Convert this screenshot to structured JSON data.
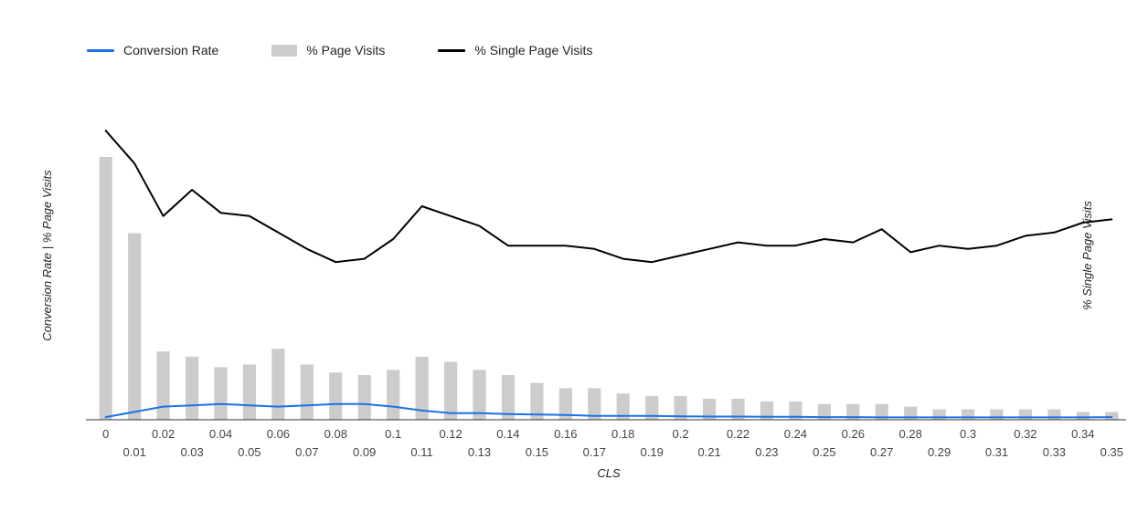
{
  "chart_data": {
    "type": "combo",
    "title": "",
    "xlabel": "CLS",
    "ylabel_left": "Conversion Rate | % Page Visits",
    "ylabel_right": "% Single Page Visits",
    "grid": false,
    "legend_position": "top",
    "ylim_left": [
      0,
      125
    ],
    "ylim_right": [
      0,
      100
    ],
    "categories": [
      "0",
      "0.01",
      "0.02",
      "0.03",
      "0.04",
      "0.05",
      "0.06",
      "0.07",
      "0.08",
      "0.09",
      "0.1",
      "0.11",
      "0.12",
      "0.13",
      "0.14",
      "0.15",
      "0.16",
      "0.17",
      "0.18",
      "0.19",
      "0.2",
      "0.21",
      "0.22",
      "0.23",
      "0.24",
      "0.25",
      "0.26",
      "0.27",
      "0.28",
      "0.29",
      "0.3",
      "0.31",
      "0.32",
      "0.33",
      "0.34",
      "0.35"
    ],
    "series": [
      {
        "name": "Conversion Rate",
        "type": "line",
        "axis": "left",
        "color": "#1a73e8",
        "values": [
          1,
          3,
          5,
          5.5,
          6,
          5.5,
          5,
          5.5,
          6,
          6,
          5,
          3.5,
          2.5,
          2.5,
          2.2,
          2,
          1.8,
          1.5,
          1.5,
          1.5,
          1.3,
          1.2,
          1.2,
          1.1,
          1.1,
          1,
          1,
          0.9,
          0.9,
          0.9,
          0.9,
          0.9,
          0.9,
          0.9,
          0.9,
          1
        ]
      },
      {
        "name": "% Page Visits",
        "type": "bar",
        "axis": "left",
        "color": "#cccccc",
        "values": [
          100,
          71,
          26,
          24,
          20,
          21,
          27,
          21,
          18,
          17,
          19,
          24,
          22,
          19,
          17,
          14,
          12,
          12,
          10,
          9,
          9,
          8,
          8,
          7,
          7,
          6,
          6,
          6,
          5,
          4,
          4,
          4,
          4,
          4,
          3,
          3
        ]
      },
      {
        "name": "% Single Page Visits",
        "type": "line",
        "axis": "right",
        "color": "#000000",
        "values": [
          88,
          78,
          62,
          70,
          63,
          62,
          57,
          52,
          48,
          49,
          55,
          65,
          62,
          59,
          53,
          53,
          53,
          52,
          49,
          48,
          50,
          52,
          54,
          53,
          53,
          55,
          54,
          58,
          51,
          53,
          52,
          53,
          56,
          57,
          60,
          61
        ]
      }
    ],
    "axis_style": {
      "baseline_color": "#333333",
      "tick_label_color": "#444444",
      "axis_title_color": "#222222"
    }
  }
}
